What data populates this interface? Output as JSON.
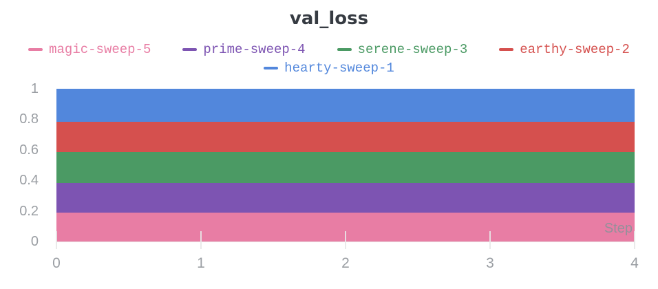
{
  "chart_data": {
    "type": "area",
    "title": "val_loss",
    "xlabel": "Step",
    "ylabel": "",
    "xlim": [
      0,
      4
    ],
    "ylim": [
      0,
      1
    ],
    "x_ticks": [
      "0",
      "1",
      "2",
      "3",
      "4"
    ],
    "y_ticks": [
      "0",
      "0.2",
      "0.4",
      "0.6",
      "0.8",
      "1"
    ],
    "grid": false,
    "legend_position": "top",
    "series": [
      {
        "name": "magic-sweep-5",
        "color": "#e87da4",
        "band": [
          0.0,
          0.19
        ],
        "x_range": [
          0,
          4
        ]
      },
      {
        "name": "prime-sweep-4",
        "color": "#7d54b2",
        "band": [
          0.19,
          0.385
        ],
        "x_range": [
          0,
          4
        ]
      },
      {
        "name": "serene-sweep-3",
        "color": "#4b9a64",
        "band": [
          0.385,
          0.585
        ],
        "x_range": [
          0,
          4
        ]
      },
      {
        "name": "earthy-sweep-2",
        "color": "#d5504e",
        "band": [
          0.585,
          0.785
        ],
        "x_range": [
          0,
          4
        ]
      },
      {
        "name": "hearty-sweep-1",
        "color": "#5287dc",
        "band": [
          0.785,
          1.0
        ],
        "x_range": [
          0,
          4
        ]
      }
    ],
    "colors": {
      "title_text": "#363b42",
      "axis_text": "#9a9ea3",
      "axis_line": "#e7e7e7",
      "tick_mark": "#e8e8e8",
      "step_label": "#8d929a"
    }
  }
}
